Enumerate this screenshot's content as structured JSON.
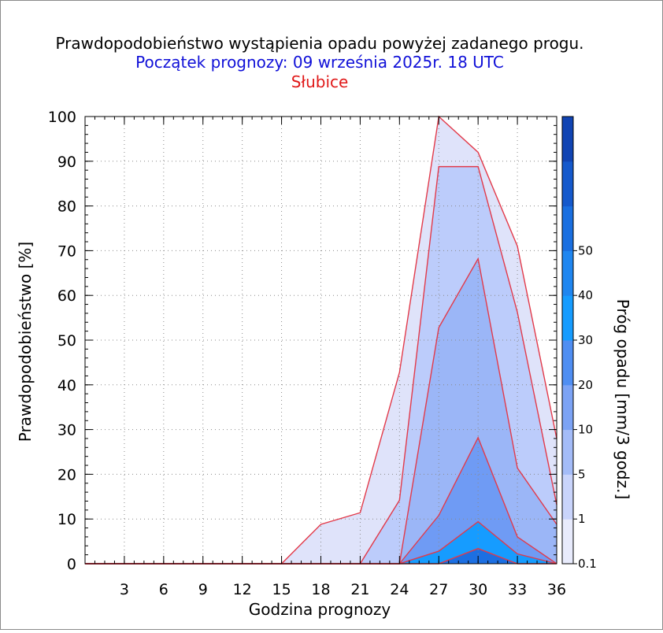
{
  "titles": {
    "line1": "Prawdopodobieństwo wystąpienia opadu powyżej zadanego progu.",
    "line2": "Początek prognozy: 09 września 2025r. 18 UTC",
    "line3": "Słubice"
  },
  "chart_data": {
    "type": "area",
    "xlabel": "Godzina prognozy",
    "ylabel": "Prawdopodobieństwo [%]",
    "colorbar_label": "Próg opadu [mm/3 godz.]",
    "x": [
      0,
      3,
      6,
      9,
      12,
      15,
      18,
      21,
      24,
      27,
      30,
      33,
      36
    ],
    "x_tick_labels": [
      "3",
      "6",
      "9",
      "12",
      "15",
      "18",
      "21",
      "24",
      "27",
      "30",
      "33",
      "36"
    ],
    "y_tick_labels": [
      "0",
      "10",
      "20",
      "30",
      "40",
      "50",
      "60",
      "70",
      "80",
      "90",
      "100"
    ],
    "xlim": [
      0,
      36
    ],
    "ylim": [
      0,
      100
    ],
    "grid": true,
    "series": [
      {
        "name": "0.1",
        "color": "#dfe3fa",
        "values": [
          0,
          0,
          0,
          0,
          0,
          0,
          8.8,
          11.4,
          42.8,
          100,
          92,
          71,
          28
        ]
      },
      {
        "name": "1",
        "color": "#bcccfb",
        "values": [
          0,
          0,
          0,
          0,
          0,
          0,
          0,
          0,
          14.2,
          88.8,
          88.8,
          56.2,
          13.2
        ]
      },
      {
        "name": "5",
        "color": "#9bb6f7",
        "values": [
          0,
          0,
          0,
          0,
          0,
          0,
          0,
          0,
          0,
          52.8,
          68.2,
          21.4,
          8.8
        ]
      },
      {
        "name": "10",
        "color": "#6f9bf4",
        "values": [
          0,
          0,
          0,
          0,
          0,
          0,
          0,
          0,
          0,
          10.8,
          28.2,
          6,
          0
        ]
      },
      {
        "name": "20",
        "color": "#169cff",
        "values": [
          0,
          0,
          0,
          0,
          0,
          0,
          0,
          0,
          0,
          2.8,
          9.4,
          2.2,
          0
        ]
      },
      {
        "name": "30",
        "color": "#1c6fe2",
        "values": [
          0,
          0,
          0,
          0,
          0,
          0,
          0,
          0,
          0,
          0,
          3.4,
          0,
          0
        ]
      }
    ],
    "colorbar": {
      "labels": [
        "0.1",
        "1",
        "5",
        "10",
        "20",
        "30",
        "40",
        "50"
      ],
      "colors": [
        "#e8ebfc",
        "#c9d4fb",
        "#a4bcf8",
        "#7ca3f5",
        "#4f8ef2",
        "#169cff",
        "#1f86f0",
        "#1a6fe0",
        "#1559cc",
        "#1144b3"
      ]
    }
  }
}
